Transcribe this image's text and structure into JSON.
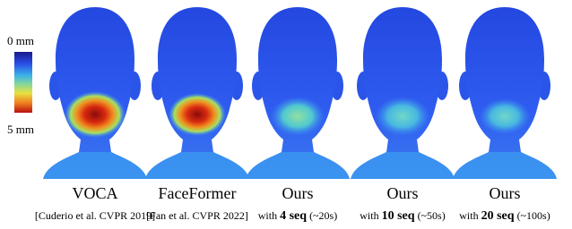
{
  "colorbar": {
    "min_label": "0 mm",
    "max_label": "5 mm"
  },
  "panels": [
    {
      "title": "VOCA",
      "caption": {
        "text": "[Cuderio et al. CVPR 2019]"
      }
    },
    {
      "title": "FaceFormer",
      "caption": {
        "text": "[Fan et al. CVPR 2022]"
      }
    },
    {
      "title": "Ours",
      "caption": {
        "prefix": "with",
        "bold": "4 seq",
        "suffix": "(~20s)"
      }
    },
    {
      "title": "Ours",
      "caption": {
        "prefix": "with",
        "bold": "10 seq",
        "suffix": "(~50s)"
      }
    },
    {
      "title": "Ours",
      "caption": {
        "prefix": "with",
        "bold": "20 seq",
        "suffix": "(~100s)"
      }
    }
  ]
}
